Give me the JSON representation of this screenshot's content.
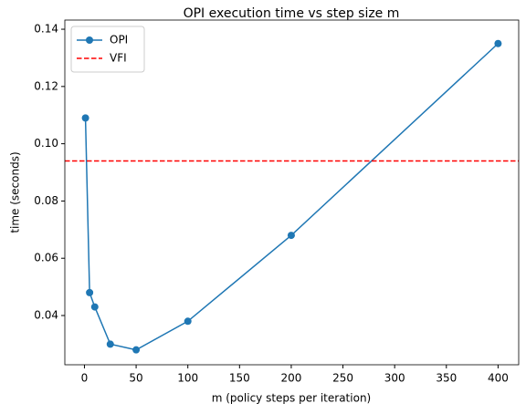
{
  "chart_data": {
    "type": "line",
    "title": "OPI execution time vs step size m",
    "x_label": "m (policy steps per iteration)",
    "y_label": "time (seconds)",
    "x": [
      1,
      5,
      10,
      25,
      50,
      100,
      200,
      400
    ],
    "series": [
      {
        "name": "OPI",
        "color": "#1f77b4",
        "values": [
          0.109,
          0.048,
          0.043,
          0.03,
          0.028,
          0.038,
          0.068,
          0.135
        ]
      }
    ],
    "hlines": [
      {
        "name": "VFI",
        "color": "#ff0000",
        "value": 0.094
      }
    ],
    "xlim": [
      -18.95,
      419.95
    ],
    "xticks": [
      0,
      50,
      100,
      150,
      200,
      250,
      300,
      350,
      400
    ],
    "ylim": [
      0.0228,
      0.1432
    ],
    "yticks": [
      0.04,
      0.06,
      0.08,
      {
        "value": 0.1,
        "label": "0.10"
      },
      0.12,
      0.14
    ],
    "legend": "upper left",
    "grid": false
  }
}
